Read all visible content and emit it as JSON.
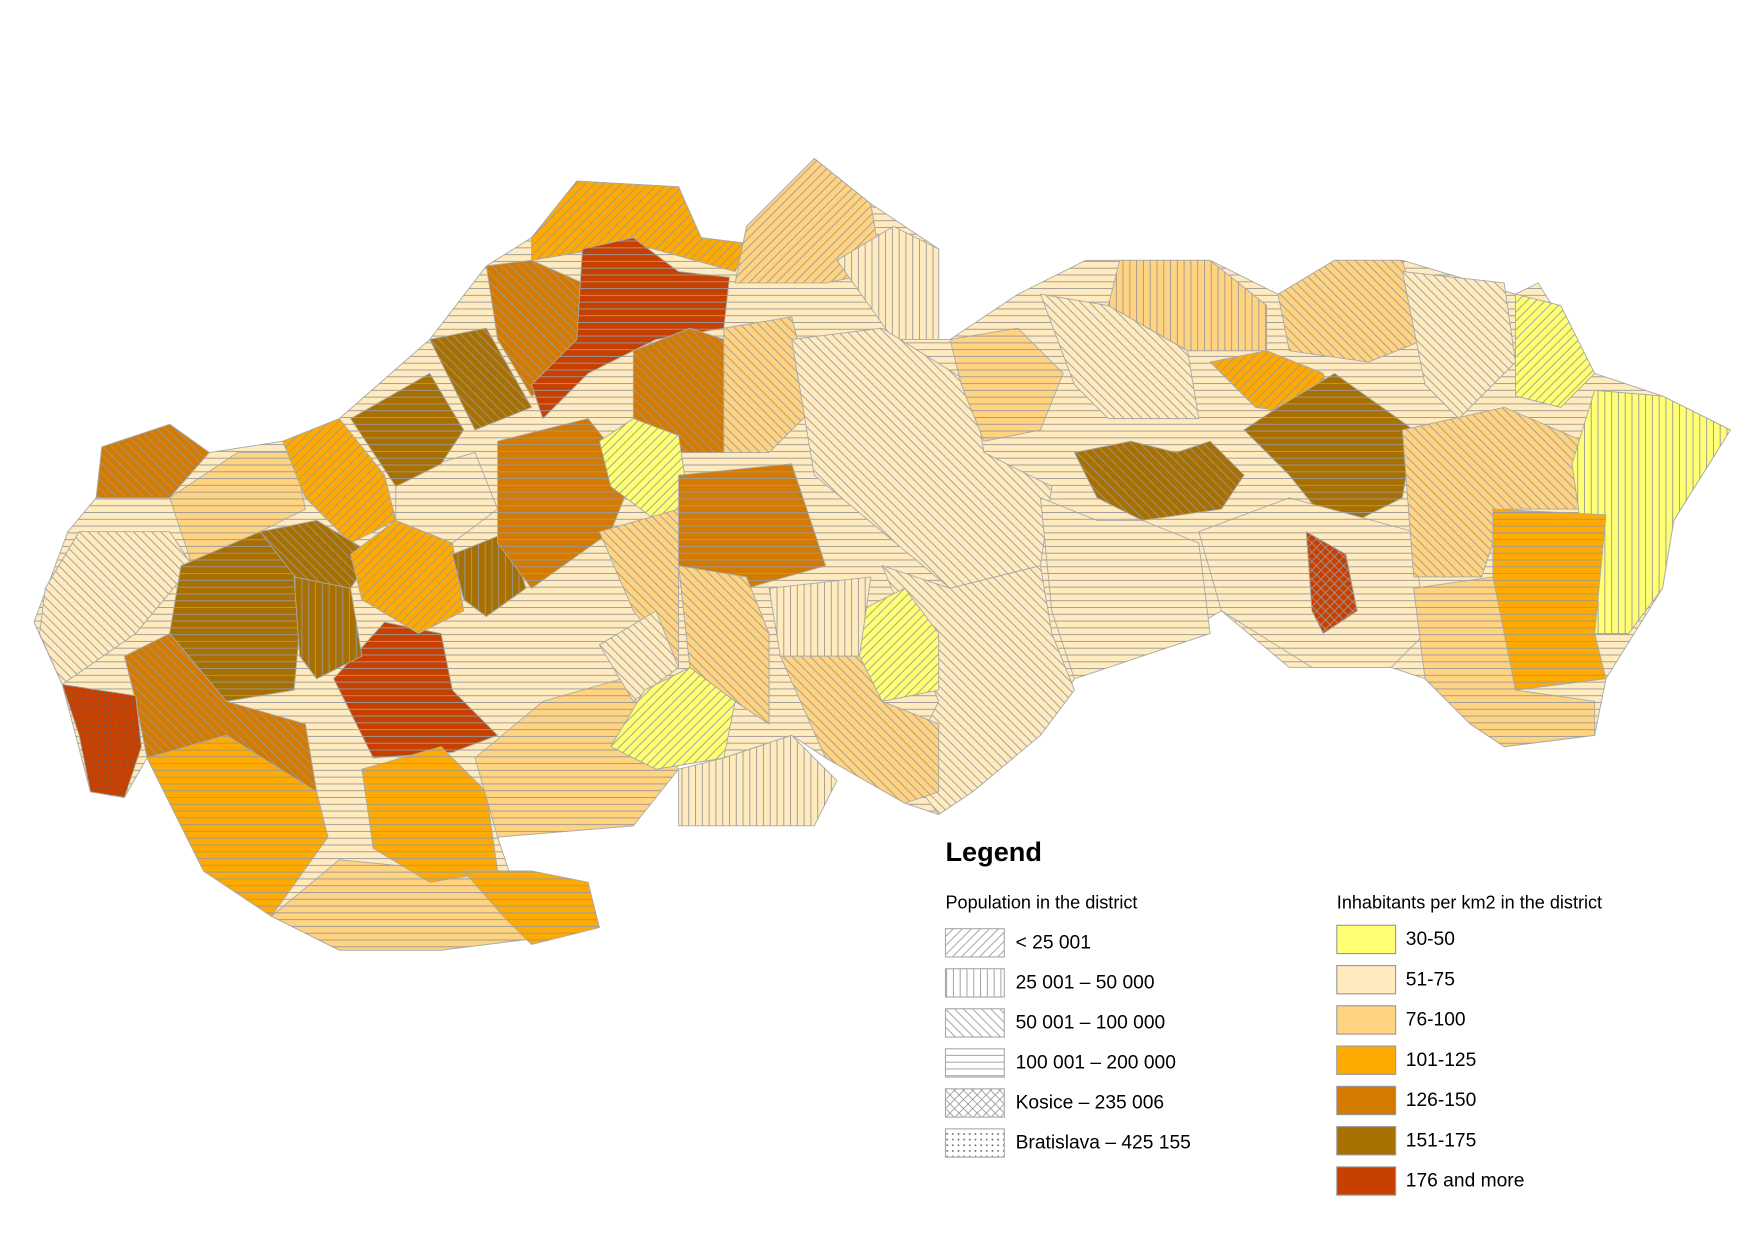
{
  "legend": {
    "title": "Legend",
    "population": {
      "title": "Population in the district",
      "items": [
        {
          "label": "< 25 001"
        },
        {
          "label": "25 001 – 50 000"
        },
        {
          "label": "50 001 – 100 000"
        },
        {
          "label": "100 001 – 200 000"
        },
        {
          "label": "Kosice – 235 006"
        },
        {
          "label": "Bratislava – 425 155"
        }
      ]
    },
    "density": {
      "title": "Inhabitants per km2 in the district",
      "items": [
        {
          "label": "30-50",
          "color": "#ffff73"
        },
        {
          "label": "51-75",
          "color": "#ffebbe"
        },
        {
          "label": "76-100",
          "color": "#ffd37f"
        },
        {
          "label": "101-125",
          "color": "#ffaa00"
        },
        {
          "label": "126-150",
          "color": "#d47a00"
        },
        {
          "label": "151-175",
          "color": "#a87000"
        },
        {
          "label": "176 and more",
          "color": "#c84000"
        }
      ]
    }
  }
}
